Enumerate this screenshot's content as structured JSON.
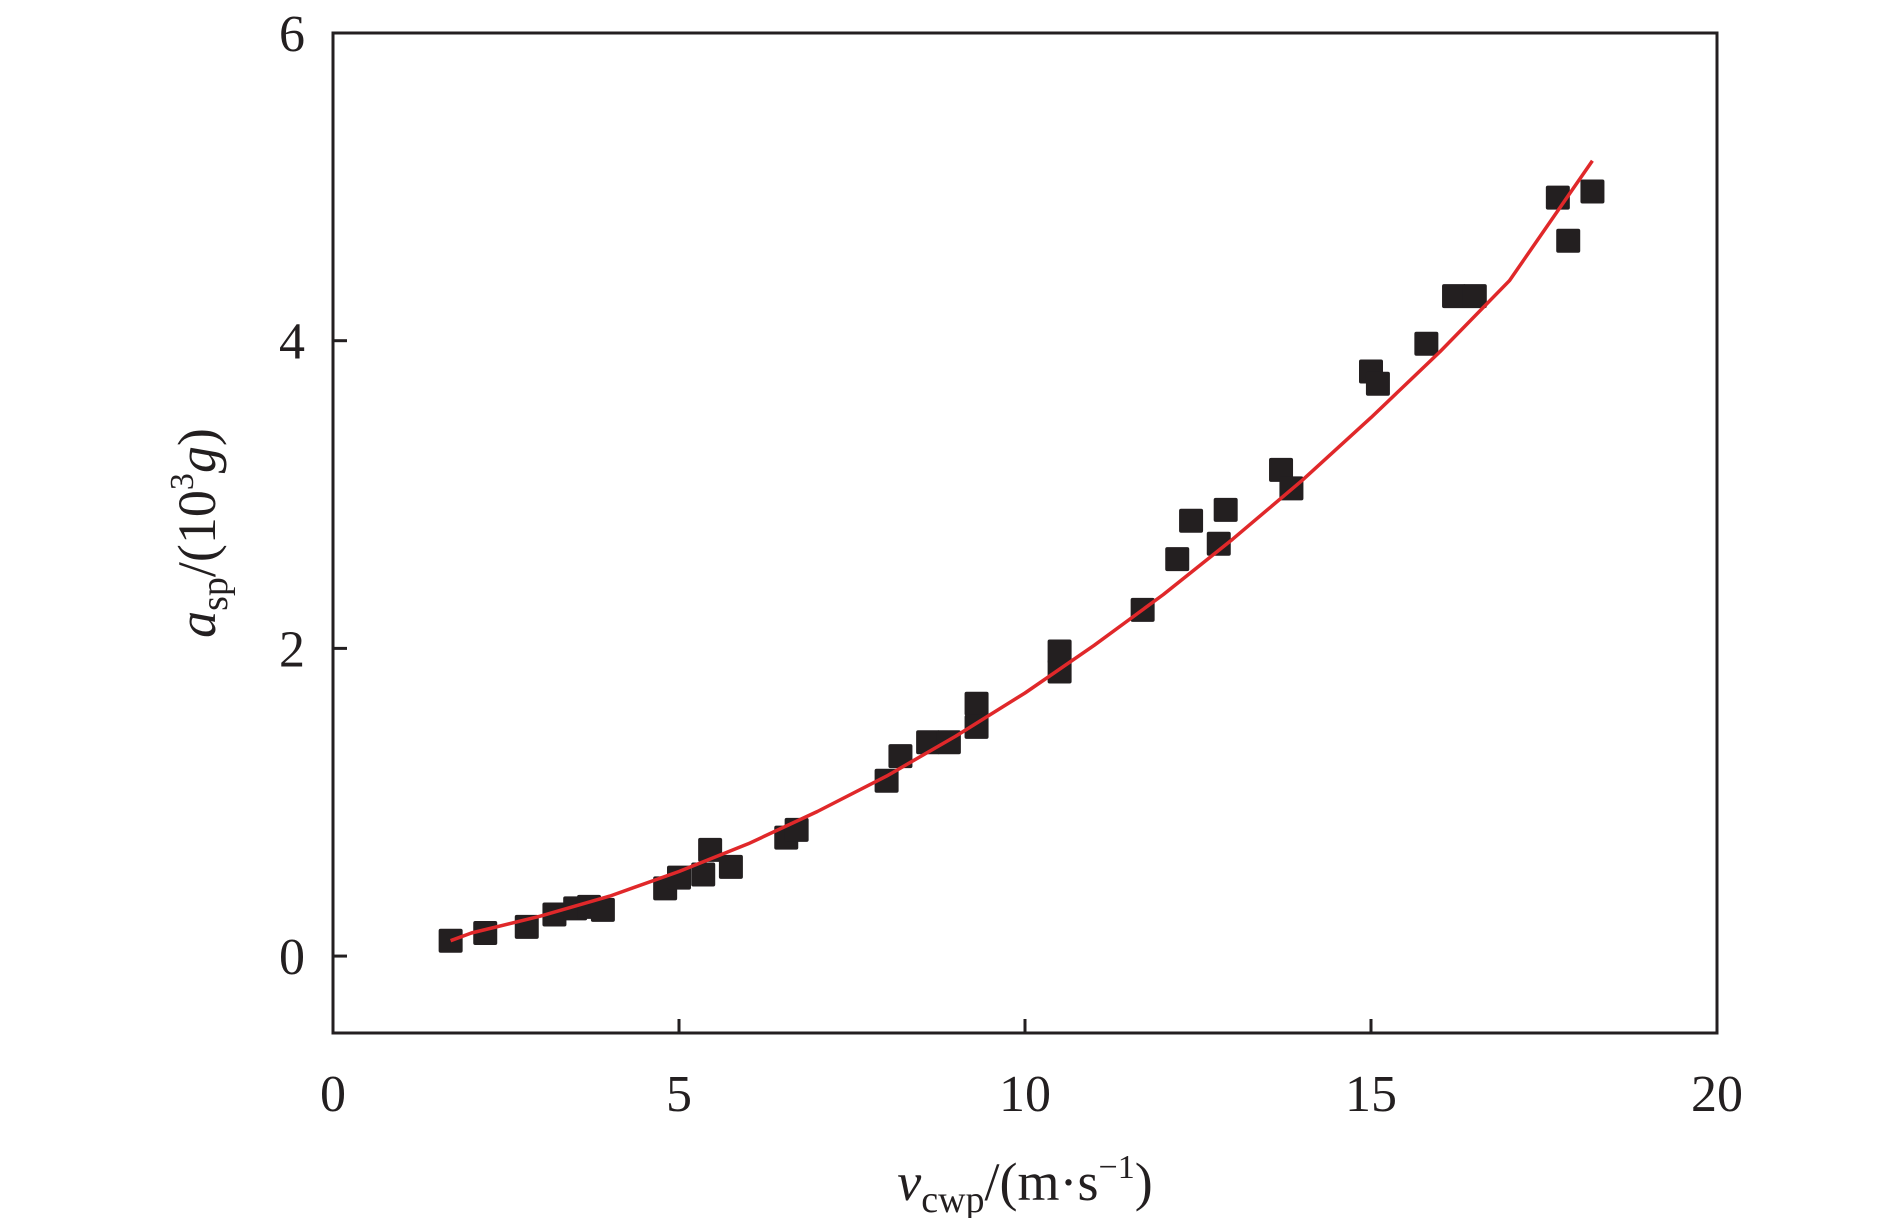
{
  "chart_data": {
    "type": "scatter",
    "xlabel": {
      "var": "v",
      "sub": "cwp",
      "unit_open": "/(m·s",
      "unit_exp": "−1",
      "unit_close": ")"
    },
    "ylabel": {
      "var": "a",
      "sub": "sp",
      "unit_open": "/(10",
      "unit_exp": "3",
      "unit_var": "g",
      "unit_close": ")"
    },
    "xlim": [
      0,
      20
    ],
    "ylim": [
      -0.5,
      6
    ],
    "xticks": [
      0,
      5,
      10,
      15,
      20
    ],
    "xtick_labels": [
      "0",
      "5",
      "10",
      "15",
      "20"
    ],
    "yticks": [
      0,
      2,
      4,
      6
    ],
    "ytick_labels": [
      "0",
      "2",
      "4",
      "6"
    ],
    "grid": false,
    "legend": "none",
    "series": [
      {
        "kind": "points",
        "marker": "square",
        "color": "#231f20",
        "points": [
          [
            1.7,
            0.1
          ],
          [
            2.2,
            0.15
          ],
          [
            2.8,
            0.19
          ],
          [
            3.2,
            0.27
          ],
          [
            3.5,
            0.31
          ],
          [
            3.7,
            0.32
          ],
          [
            3.9,
            0.3
          ],
          [
            4.8,
            0.44
          ],
          [
            5.0,
            0.51
          ],
          [
            5.35,
            0.53
          ],
          [
            5.45,
            0.69
          ],
          [
            5.75,
            0.58
          ],
          [
            6.55,
            0.77
          ],
          [
            6.7,
            0.82
          ],
          [
            8.0,
            1.14
          ],
          [
            8.2,
            1.3
          ],
          [
            8.6,
            1.39
          ],
          [
            8.9,
            1.39
          ],
          [
            9.3,
            1.64
          ],
          [
            9.3,
            1.49
          ],
          [
            10.5,
            1.98
          ],
          [
            10.5,
            1.85
          ],
          [
            11.7,
            2.25
          ],
          [
            12.2,
            2.58
          ],
          [
            12.4,
            2.83
          ],
          [
            12.8,
            2.68
          ],
          [
            12.9,
            2.9
          ],
          [
            13.7,
            3.16
          ],
          [
            13.85,
            3.04
          ],
          [
            15.0,
            3.8
          ],
          [
            15.1,
            3.72
          ],
          [
            15.8,
            3.98
          ],
          [
            16.2,
            4.29
          ],
          [
            16.5,
            4.29
          ],
          [
            17.7,
            4.93
          ],
          [
            17.85,
            4.65
          ],
          [
            18.2,
            4.97
          ]
        ]
      },
      {
        "kind": "fit-curve",
        "color": "#e0282a",
        "x": [
          1.7,
          2,
          3,
          4,
          5,
          6,
          7,
          8,
          9,
          10,
          11,
          12,
          13,
          14,
          15,
          16,
          17,
          18.2
        ],
        "y": [
          0.1,
          0.15,
          0.26,
          0.39,
          0.55,
          0.73,
          0.94,
          1.17,
          1.43,
          1.71,
          2.02,
          2.35,
          2.71,
          3.09,
          3.5,
          3.93,
          4.39,
          5.17
        ]
      }
    ]
  }
}
